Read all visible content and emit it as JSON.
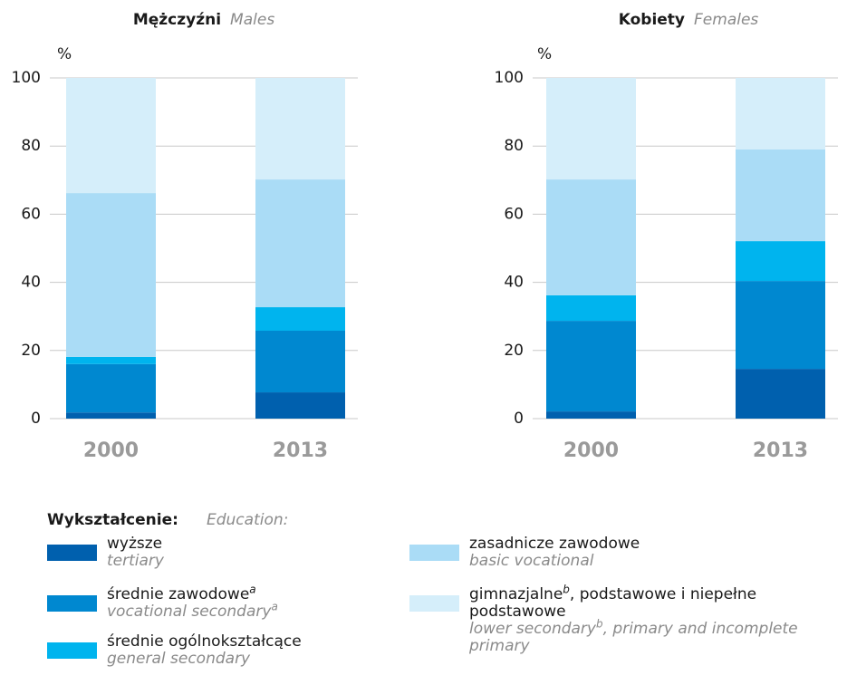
{
  "chart_data": [
    {
      "type": "bar",
      "stacked": true,
      "title": "Mężczyźni",
      "subtitle": "Males",
      "y_label": "%",
      "categories": [
        "2000",
        "2013"
      ],
      "ylim": [
        0,
        100
      ],
      "yticks": [
        0,
        20,
        40,
        60,
        80,
        100
      ],
      "grid": true,
      "series": [
        {
          "color": "#0060ae",
          "values": [
            1.8,
            7.7
          ]
        },
        {
          "color": "#0088d0",
          "values": [
            14.2,
            18.1
          ]
        },
        {
          "color": "#00b4ee",
          "values": [
            2.1,
            6.9
          ]
        },
        {
          "color": "#aadcf6",
          "values": [
            48.1,
            37.5
          ]
        },
        {
          "color": "#d5eefa",
          "values": [
            33.8,
            29.8
          ]
        }
      ]
    },
    {
      "type": "bar",
      "stacked": true,
      "title": "Kobiety",
      "subtitle": "Females",
      "y_label": "%",
      "categories": [
        "2000",
        "2013"
      ],
      "ylim": [
        0,
        100
      ],
      "yticks": [
        0,
        20,
        40,
        60,
        80,
        100
      ],
      "grid": true,
      "series": [
        {
          "color": "#0060ae",
          "values": [
            2.1,
            14.6
          ]
        },
        {
          "color": "#0088d0",
          "values": [
            26.6,
            25.8
          ]
        },
        {
          "color": "#00b4ee",
          "values": [
            7.5,
            11.7
          ]
        },
        {
          "color": "#aadcf6",
          "values": [
            34.0,
            26.9
          ]
        },
        {
          "color": "#d5eefa",
          "values": [
            29.8,
            21.0
          ]
        }
      ]
    }
  ],
  "legend": {
    "title": "Wykształcenie:",
    "title_en": "Education:",
    "items": [
      {
        "label": "wyższe",
        "label_en": "tertiary"
      },
      {
        "label": "średnie zawodowe",
        "label_sup": "a",
        "label_en": "vocational secondary",
        "label_en_sup": "a"
      },
      {
        "label": "średnie ogólnokształcące",
        "label_en": "general secondary"
      },
      {
        "label": "zasadnicze zawodowe",
        "label_en": "basic vocational"
      },
      {
        "label": "gimnazjalne",
        "label_sup": "b",
        "label_rest": ", podstawowe i niepełne podstawowe",
        "label_en": "lower secondary",
        "label_en_sup": "b",
        "label_en_rest": ", primary and incomplete primary"
      }
    ]
  }
}
